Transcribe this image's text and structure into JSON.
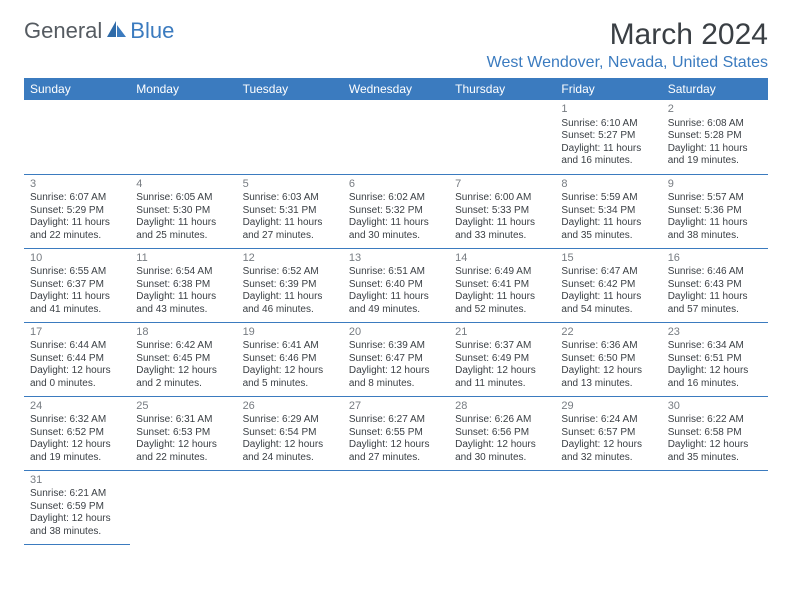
{
  "logo": {
    "textA": "General",
    "textB": "Blue"
  },
  "header": {
    "month": "March 2024",
    "location": "West Wendover, Nevada, United States"
  },
  "colors": {
    "brand": "#3b7bbf",
    "text": "#3a3f44",
    "muted": "#777c82",
    "bg": "#ffffff"
  },
  "weekdays": [
    "Sunday",
    "Monday",
    "Tuesday",
    "Wednesday",
    "Thursday",
    "Friday",
    "Saturday"
  ],
  "startWeekday": 5,
  "daysInMonth": 31,
  "days": {
    "1": {
      "sunrise": "6:10 AM",
      "sunset": "5:27 PM",
      "daylight": "11 hours and 16 minutes."
    },
    "2": {
      "sunrise": "6:08 AM",
      "sunset": "5:28 PM",
      "daylight": "11 hours and 19 minutes."
    },
    "3": {
      "sunrise": "6:07 AM",
      "sunset": "5:29 PM",
      "daylight": "11 hours and 22 minutes."
    },
    "4": {
      "sunrise": "6:05 AM",
      "sunset": "5:30 PM",
      "daylight": "11 hours and 25 minutes."
    },
    "5": {
      "sunrise": "6:03 AM",
      "sunset": "5:31 PM",
      "daylight": "11 hours and 27 minutes."
    },
    "6": {
      "sunrise": "6:02 AM",
      "sunset": "5:32 PM",
      "daylight": "11 hours and 30 minutes."
    },
    "7": {
      "sunrise": "6:00 AM",
      "sunset": "5:33 PM",
      "daylight": "11 hours and 33 minutes."
    },
    "8": {
      "sunrise": "5:59 AM",
      "sunset": "5:34 PM",
      "daylight": "11 hours and 35 minutes."
    },
    "9": {
      "sunrise": "5:57 AM",
      "sunset": "5:36 PM",
      "daylight": "11 hours and 38 minutes."
    },
    "10": {
      "sunrise": "6:55 AM",
      "sunset": "6:37 PM",
      "daylight": "11 hours and 41 minutes."
    },
    "11": {
      "sunrise": "6:54 AM",
      "sunset": "6:38 PM",
      "daylight": "11 hours and 43 minutes."
    },
    "12": {
      "sunrise": "6:52 AM",
      "sunset": "6:39 PM",
      "daylight": "11 hours and 46 minutes."
    },
    "13": {
      "sunrise": "6:51 AM",
      "sunset": "6:40 PM",
      "daylight": "11 hours and 49 minutes."
    },
    "14": {
      "sunrise": "6:49 AM",
      "sunset": "6:41 PM",
      "daylight": "11 hours and 52 minutes."
    },
    "15": {
      "sunrise": "6:47 AM",
      "sunset": "6:42 PM",
      "daylight": "11 hours and 54 minutes."
    },
    "16": {
      "sunrise": "6:46 AM",
      "sunset": "6:43 PM",
      "daylight": "11 hours and 57 minutes."
    },
    "17": {
      "sunrise": "6:44 AM",
      "sunset": "6:44 PM",
      "daylight": "12 hours and 0 minutes."
    },
    "18": {
      "sunrise": "6:42 AM",
      "sunset": "6:45 PM",
      "daylight": "12 hours and 2 minutes."
    },
    "19": {
      "sunrise": "6:41 AM",
      "sunset": "6:46 PM",
      "daylight": "12 hours and 5 minutes."
    },
    "20": {
      "sunrise": "6:39 AM",
      "sunset": "6:47 PM",
      "daylight": "12 hours and 8 minutes."
    },
    "21": {
      "sunrise": "6:37 AM",
      "sunset": "6:49 PM",
      "daylight": "12 hours and 11 minutes."
    },
    "22": {
      "sunrise": "6:36 AM",
      "sunset": "6:50 PM",
      "daylight": "12 hours and 13 minutes."
    },
    "23": {
      "sunrise": "6:34 AM",
      "sunset": "6:51 PM",
      "daylight": "12 hours and 16 minutes."
    },
    "24": {
      "sunrise": "6:32 AM",
      "sunset": "6:52 PM",
      "daylight": "12 hours and 19 minutes."
    },
    "25": {
      "sunrise": "6:31 AM",
      "sunset": "6:53 PM",
      "daylight": "12 hours and 22 minutes."
    },
    "26": {
      "sunrise": "6:29 AM",
      "sunset": "6:54 PM",
      "daylight": "12 hours and 24 minutes."
    },
    "27": {
      "sunrise": "6:27 AM",
      "sunset": "6:55 PM",
      "daylight": "12 hours and 27 minutes."
    },
    "28": {
      "sunrise": "6:26 AM",
      "sunset": "6:56 PM",
      "daylight": "12 hours and 30 minutes."
    },
    "29": {
      "sunrise": "6:24 AM",
      "sunset": "6:57 PM",
      "daylight": "12 hours and 32 minutes."
    },
    "30": {
      "sunrise": "6:22 AM",
      "sunset": "6:58 PM",
      "daylight": "12 hours and 35 minutes."
    },
    "31": {
      "sunrise": "6:21 AM",
      "sunset": "6:59 PM",
      "daylight": "12 hours and 38 minutes."
    }
  },
  "labels": {
    "sunrise": "Sunrise:",
    "sunset": "Sunset:",
    "daylight": "Daylight:"
  }
}
